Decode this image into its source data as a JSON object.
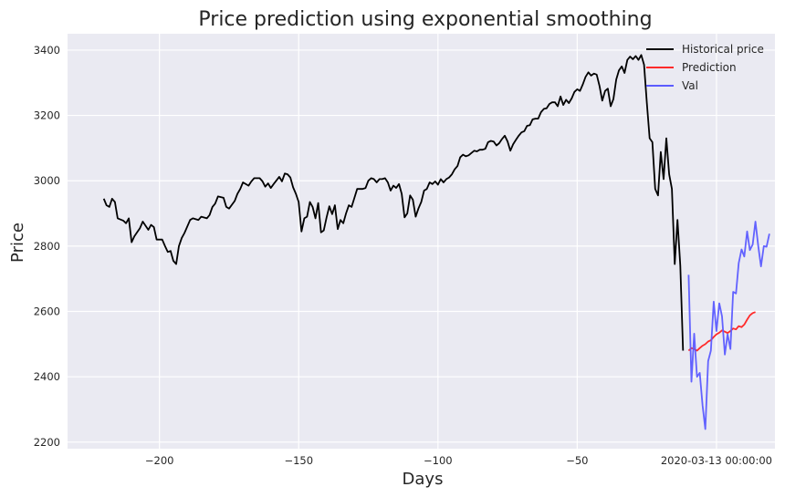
{
  "chart_data": {
    "type": "line",
    "title": "Price prediction using exponential smoothing",
    "xlabel": "Days",
    "ylabel": "Price",
    "xlim": [
      -233,
      21
    ],
    "ylim": [
      2180,
      3450
    ],
    "grid": true,
    "legend_position": "top-right",
    "xticks": [
      {
        "value": -200,
        "label": "−200"
      },
      {
        "value": -150,
        "label": "−150"
      },
      {
        "value": -100,
        "label": "−100"
      },
      {
        "value": -50,
        "label": "−50"
      },
      {
        "value": 0,
        "label": "2020-03-13 00:00:00"
      }
    ],
    "yticks": [
      2200,
      2400,
      2600,
      2800,
      3000,
      3200,
      3400
    ],
    "series": [
      {
        "name": "Historical price",
        "color": "#000000",
        "points": [
          [
            -220,
            2945
          ],
          [
            -219,
            2925
          ],
          [
            -218,
            2920
          ],
          [
            -217,
            2945
          ],
          [
            -216,
            2935
          ],
          [
            -215,
            2885
          ],
          [
            -213,
            2878
          ],
          [
            -212,
            2870
          ],
          [
            -211,
            2885
          ],
          [
            -210,
            2812
          ],
          [
            -209,
            2830
          ],
          [
            -207,
            2855
          ],
          [
            -206,
            2875
          ],
          [
            -204,
            2850
          ],
          [
            -203,
            2865
          ],
          [
            -202,
            2858
          ],
          [
            -201,
            2820
          ],
          [
            -199,
            2820
          ],
          [
            -198,
            2800
          ],
          [
            -197,
            2782
          ],
          [
            -196,
            2785
          ],
          [
            -195,
            2755
          ],
          [
            -194,
            2745
          ],
          [
            -193,
            2800
          ],
          [
            -192,
            2825
          ],
          [
            -191,
            2840
          ],
          [
            -189,
            2880
          ],
          [
            -188,
            2885
          ],
          [
            -186,
            2880
          ],
          [
            -185,
            2890
          ],
          [
            -183,
            2885
          ],
          [
            -182,
            2895
          ],
          [
            -181,
            2920
          ],
          [
            -180,
            2930
          ],
          [
            -179,
            2952
          ],
          [
            -177,
            2948
          ],
          [
            -176,
            2920
          ],
          [
            -175,
            2915
          ],
          [
            -173,
            2938
          ],
          [
            -172,
            2960
          ],
          [
            -171,
            2975
          ],
          [
            -170,
            2995
          ],
          [
            -168,
            2985
          ],
          [
            -167,
            2998
          ],
          [
            -166,
            3008
          ],
          [
            -164,
            3008
          ],
          [
            -163,
            2998
          ],
          [
            -162,
            2982
          ],
          [
            -161,
            2992
          ],
          [
            -160,
            2978
          ],
          [
            -159,
            2990
          ],
          [
            -157,
            3012
          ],
          [
            -156,
            2998
          ],
          [
            -155,
            3022
          ],
          [
            -154,
            3020
          ],
          [
            -153,
            3010
          ],
          [
            -152,
            2980
          ],
          [
            -151,
            2960
          ],
          [
            -150,
            2935
          ],
          [
            -149,
            2845
          ],
          [
            -148,
            2885
          ],
          [
            -147,
            2890
          ],
          [
            -146,
            2935
          ],
          [
            -145,
            2920
          ],
          [
            -144,
            2885
          ],
          [
            -143,
            2932
          ],
          [
            -142,
            2842
          ],
          [
            -141,
            2848
          ],
          [
            -140,
            2888
          ],
          [
            -139,
            2922
          ],
          [
            -138,
            2898
          ],
          [
            -137,
            2925
          ],
          [
            -136,
            2852
          ],
          [
            -135,
            2880
          ],
          [
            -134,
            2870
          ],
          [
            -133,
            2900
          ],
          [
            -132,
            2925
          ],
          [
            -131,
            2920
          ],
          [
            -130,
            2948
          ],
          [
            -129,
            2975
          ],
          [
            -128,
            2975
          ],
          [
            -127,
            2975
          ],
          [
            -126,
            2978
          ],
          [
            -125,
            3000
          ],
          [
            -124,
            3008
          ],
          [
            -123,
            3005
          ],
          [
            -122,
            2995
          ],
          [
            -121,
            3005
          ],
          [
            -120,
            3005
          ],
          [
            -119,
            3008
          ],
          [
            -118,
            2995
          ],
          [
            -117,
            2970
          ],
          [
            -116,
            2985
          ],
          [
            -115,
            2978
          ],
          [
            -114,
            2990
          ],
          [
            -113,
            2960
          ],
          [
            -112,
            2888
          ],
          [
            -111,
            2900
          ],
          [
            -110,
            2955
          ],
          [
            -109,
            2942
          ],
          [
            -108,
            2890
          ],
          [
            -107,
            2915
          ],
          [
            -106,
            2935
          ],
          [
            -105,
            2970
          ],
          [
            -104,
            2975
          ],
          [
            -103,
            2995
          ],
          [
            -102,
            2990
          ],
          [
            -101,
            2998
          ],
          [
            -100,
            2988
          ],
          [
            -99,
            3005
          ],
          [
            -98,
            2995
          ],
          [
            -97,
            3005
          ],
          [
            -96,
            3010
          ],
          [
            -95,
            3020
          ],
          [
            -94,
            3035
          ],
          [
            -93,
            3045
          ],
          [
            -92,
            3072
          ],
          [
            -91,
            3080
          ],
          [
            -90,
            3075
          ],
          [
            -89,
            3078
          ],
          [
            -88,
            3085
          ],
          [
            -87,
            3092
          ],
          [
            -86,
            3090
          ],
          [
            -85,
            3095
          ],
          [
            -84,
            3095
          ],
          [
            -83,
            3098
          ],
          [
            -82,
            3118
          ],
          [
            -81,
            3122
          ],
          [
            -80,
            3120
          ],
          [
            -79,
            3108
          ],
          [
            -78,
            3115
          ],
          [
            -77,
            3128
          ],
          [
            -76,
            3138
          ],
          [
            -75,
            3120
          ],
          [
            -74,
            3092
          ],
          [
            -73,
            3112
          ],
          [
            -72,
            3125
          ],
          [
            -71,
            3138
          ],
          [
            -70,
            3148
          ],
          [
            -69,
            3152
          ],
          [
            -68,
            3168
          ],
          [
            -67,
            3170
          ],
          [
            -66,
            3188
          ],
          [
            -65,
            3190
          ],
          [
            -64,
            3190
          ],
          [
            -63,
            3210
          ],
          [
            -62,
            3220
          ],
          [
            -61,
            3222
          ],
          [
            -60,
            3235
          ],
          [
            -59,
            3240
          ],
          [
            -58,
            3240
          ],
          [
            -57,
            3228
          ],
          [
            -56,
            3258
          ],
          [
            -55,
            3232
          ],
          [
            -54,
            3248
          ],
          [
            -53,
            3238
          ],
          [
            -52,
            3252
          ],
          [
            -51,
            3272
          ],
          [
            -50,
            3280
          ],
          [
            -49,
            3275
          ],
          [
            -48,
            3295
          ],
          [
            -47,
            3318
          ],
          [
            -46,
            3332
          ],
          [
            -45,
            3322
          ],
          [
            -44,
            3328
          ],
          [
            -43,
            3325
          ],
          [
            -42,
            3290
          ],
          [
            -41,
            3245
          ],
          [
            -40,
            3275
          ],
          [
            -39,
            3282
          ],
          [
            -38,
            3228
          ],
          [
            -37,
            3250
          ],
          [
            -36,
            3310
          ],
          [
            -35,
            3338
          ],
          [
            -34,
            3350
          ],
          [
            -33,
            3330
          ],
          [
            -32,
            3370
          ],
          [
            -31,
            3380
          ],
          [
            -30,
            3372
          ],
          [
            -29,
            3382
          ],
          [
            -28,
            3370
          ],
          [
            -27,
            3385
          ],
          [
            -26,
            3355
          ],
          [
            -25,
            3240
          ],
          [
            -24,
            3130
          ],
          [
            -23,
            3118
          ],
          [
            -22,
            2975
          ],
          [
            -21,
            2955
          ],
          [
            -20,
            3088
          ],
          [
            -19,
            3005
          ],
          [
            -18,
            3130
          ],
          [
            -17,
            3020
          ],
          [
            -16,
            2975
          ],
          [
            -15,
            2745
          ],
          [
            -14,
            2880
          ],
          [
            -13,
            2740
          ],
          [
            -12,
            2480
          ]
        ]
      },
      {
        "name": "Prediction",
        "color": "#ff2a2a",
        "points": [
          [
            -10,
            2480
          ],
          [
            -9,
            2488
          ],
          [
            -8,
            2485
          ],
          [
            -7,
            2480
          ],
          [
            -6,
            2488
          ],
          [
            -5,
            2495
          ],
          [
            -4,
            2500
          ],
          [
            -3,
            2508
          ],
          [
            -2,
            2512
          ],
          [
            -1,
            2522
          ],
          [
            0,
            2530
          ],
          [
            1,
            2535
          ],
          [
            2,
            2542
          ],
          [
            3,
            2538
          ],
          [
            4,
            2534
          ],
          [
            5,
            2540
          ],
          [
            6,
            2548
          ],
          [
            7,
            2545
          ],
          [
            8,
            2555
          ],
          [
            9,
            2552
          ],
          [
            10,
            2560
          ],
          [
            11,
            2575
          ],
          [
            12,
            2588
          ],
          [
            13,
            2595
          ],
          [
            14,
            2598
          ]
        ]
      },
      {
        "name": "Val",
        "color": "#5b5bff",
        "points": [
          [
            -10,
            2712
          ],
          [
            -9,
            2385
          ],
          [
            -8,
            2532
          ],
          [
            -7,
            2400
          ],
          [
            -6,
            2412
          ],
          [
            -5,
            2312
          ],
          [
            -4,
            2240
          ],
          [
            -3,
            2448
          ],
          [
            -2,
            2480
          ],
          [
            -1,
            2630
          ],
          [
            0,
            2540
          ],
          [
            1,
            2625
          ],
          [
            2,
            2585
          ],
          [
            3,
            2468
          ],
          [
            4,
            2530
          ],
          [
            5,
            2485
          ],
          [
            6,
            2660
          ],
          [
            7,
            2655
          ],
          [
            8,
            2748
          ],
          [
            9,
            2790
          ],
          [
            10,
            2768
          ],
          [
            11,
            2845
          ],
          [
            12,
            2788
          ],
          [
            13,
            2805
          ],
          [
            14,
            2875
          ],
          [
            15,
            2800
          ],
          [
            16,
            2738
          ],
          [
            17,
            2800
          ],
          [
            18,
            2798
          ],
          [
            19,
            2838
          ]
        ]
      }
    ]
  }
}
